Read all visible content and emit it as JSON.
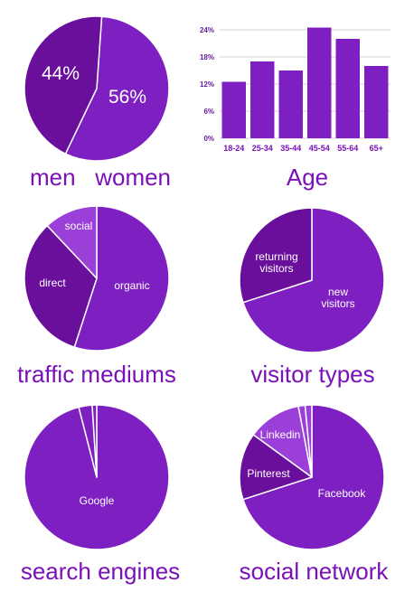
{
  "chart_data": [
    {
      "id": "gender",
      "type": "pie",
      "title": "men   women",
      "slices": [
        {
          "name": "women",
          "value": 56,
          "label": "56%",
          "color": "#7d1fc1"
        },
        {
          "name": "men",
          "value": 44,
          "label": "44%",
          "color": "#6a0f9c"
        }
      ]
    },
    {
      "id": "age",
      "type": "bar",
      "title": "Age",
      "categories": [
        "18-24",
        "25-34",
        "35-44",
        "45-54",
        "55-64",
        "65+"
      ],
      "values": [
        12.5,
        17,
        15,
        24.5,
        22,
        16
      ],
      "ylim": [
        0,
        24
      ],
      "yticks": [
        "0%",
        "6%",
        "12%",
        "18%",
        "24%"
      ],
      "grid": true,
      "bar_color": "#7d1fc1"
    },
    {
      "id": "traffic",
      "type": "pie",
      "title": "traffic mediums",
      "slices": [
        {
          "name": "organic",
          "value": 55,
          "label": "organic",
          "color": "#7d1fc1"
        },
        {
          "name": "direct",
          "value": 33,
          "label": "direct",
          "color": "#6a0f9c"
        },
        {
          "name": "social",
          "value": 12,
          "label": "social",
          "color": "#9a3fd8"
        }
      ]
    },
    {
      "id": "visitors",
      "type": "pie",
      "title": "visitor types",
      "slices": [
        {
          "name": "new visitors",
          "value": 70,
          "label": "new visitors",
          "color": "#7d1fc1"
        },
        {
          "name": "returning visitors",
          "value": 30,
          "label": "returning visitors",
          "color": "#6a0f9c"
        }
      ]
    },
    {
      "id": "search",
      "type": "pie",
      "title": "search engines",
      "slices": [
        {
          "name": "Google",
          "value": 96,
          "label": "Google",
          "color": "#7d1fc1"
        },
        {
          "name": "other-1",
          "value": 3,
          "label": "",
          "color": "#7d1fc1"
        },
        {
          "name": "other-2",
          "value": 1,
          "label": "",
          "color": "#7d1fc1"
        }
      ]
    },
    {
      "id": "social",
      "type": "pie",
      "title": "social network",
      "slices": [
        {
          "name": "Facebook",
          "value": 70,
          "label": "Facebook",
          "color": "#7d1fc1"
        },
        {
          "name": "Pinterest",
          "value": 15,
          "label": "Pinterest",
          "color": "#6a0f9c"
        },
        {
          "name": "Linkedin",
          "value": 12,
          "label": "Linkedin",
          "color": "#9a3fd8"
        },
        {
          "name": "other-1",
          "value": 1.5,
          "label": "",
          "color": "#9a3fd8"
        },
        {
          "name": "other-2",
          "value": 1.5,
          "label": "",
          "color": "#9a3fd8"
        }
      ]
    }
  ]
}
